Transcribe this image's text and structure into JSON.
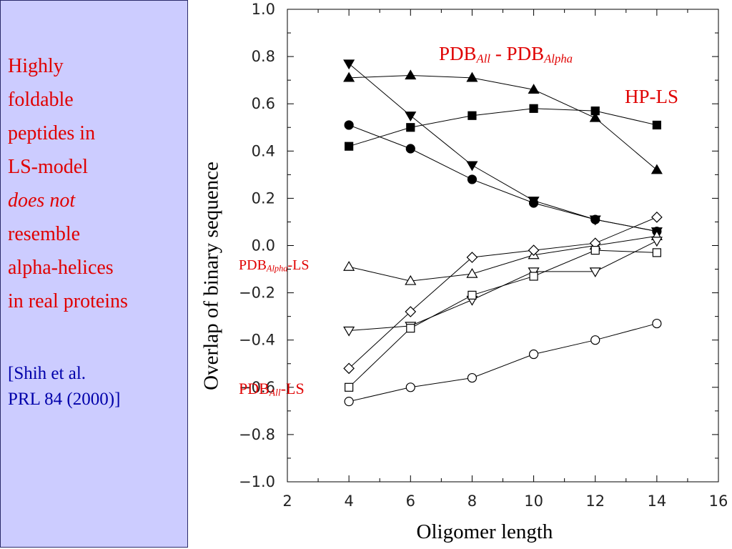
{
  "side_panel": {
    "lines": [
      "Highly",
      "foldable",
      "peptides in",
      "LS-model",
      "does not",
      "resemble",
      "alpha-helices",
      "in real proteins"
    ],
    "citation": [
      "[Shih et al.",
      "PRL 84 (2000)]"
    ]
  },
  "labels": {
    "pdb_all_alpha": {
      "p1": "PDB",
      "s1": "All",
      "mid": " - PDB",
      "s2": "Alpha"
    },
    "hp_ls": "HP-LS",
    "pdb_alpha_ls": {
      "p1": "PDB",
      "s1": "Alpha",
      "tail": "-LS"
    },
    "pdb_all_ls": {
      "p1": "PDB",
      "s1": "All",
      "tail": "-LS"
    }
  },
  "colors": {
    "panel": "#ccccff",
    "emphasis": "#e00000",
    "citation": "#0000aa"
  },
  "chart_data": {
    "type": "line",
    "xlabel": "Oligomer length",
    "ylabel": "Overlap of binary sequence",
    "xlim": [
      2,
      16
    ],
    "ylim": [
      -1.0,
      1.0
    ],
    "xticks": [
      2,
      4,
      6,
      8,
      10,
      12,
      14,
      16
    ],
    "yticks": [
      "1.0",
      "0.8",
      "0.6",
      "0.4",
      "0.2",
      "0.0",
      "−0.2",
      "−0.4",
      "−0.6",
      "−0.8",
      "−1.0"
    ],
    "x": [
      4,
      6,
      8,
      10,
      12,
      14
    ],
    "series": [
      {
        "marker": "triangle-up-filled",
        "values": [
          0.71,
          0.72,
          0.71,
          0.66,
          0.54,
          0.32
        ]
      },
      {
        "marker": "triangle-down-filled",
        "values": [
          0.77,
          0.55,
          0.34,
          0.19,
          0.11,
          0.06
        ]
      },
      {
        "marker": "square-filled",
        "values": [
          0.42,
          0.5,
          0.55,
          0.58,
          0.57,
          0.51
        ]
      },
      {
        "marker": "circle-filled",
        "values": [
          0.51,
          0.41,
          0.28,
          0.18,
          0.11,
          0.06
        ]
      },
      {
        "marker": "triangle-up-open",
        "values": [
          -0.09,
          -0.15,
          -0.12,
          -0.04,
          0.0,
          0.04
        ]
      },
      {
        "marker": "diamond-open",
        "values": [
          -0.52,
          -0.28,
          -0.05,
          -0.02,
          0.01,
          0.12
        ]
      },
      {
        "marker": "triangle-down-open",
        "values": [
          -0.36,
          -0.34,
          -0.23,
          -0.11,
          -0.11,
          0.02
        ]
      },
      {
        "marker": "square-open",
        "values": [
          -0.6,
          -0.35,
          -0.21,
          -0.13,
          -0.02,
          -0.03
        ]
      },
      {
        "marker": "circle-open",
        "values": [
          -0.66,
          -0.6,
          -0.56,
          -0.46,
          -0.4,
          -0.33
        ]
      }
    ]
  }
}
